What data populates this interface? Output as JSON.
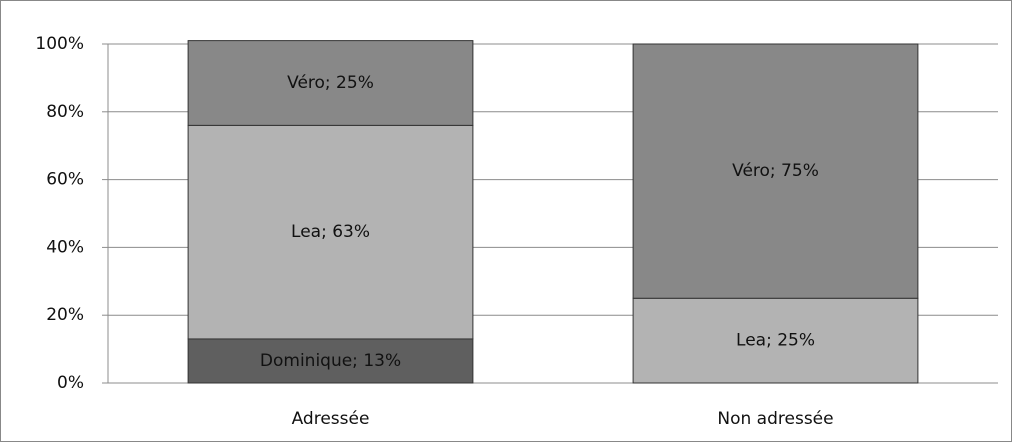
{
  "chart_data": {
    "type": "stacked_bar",
    "categories": [
      "Adressée",
      "Non adressée"
    ],
    "series": [
      {
        "name": "Dominique",
        "color": "#5f5f5f",
        "values": [
          13,
          null
        ],
        "value_labels": [
          "Dominique; 13%",
          null
        ]
      },
      {
        "name": "Lea",
        "color": "#b3b3b3",
        "values": [
          63,
          25
        ],
        "value_labels": [
          "Lea; 63%",
          "Lea; 25%"
        ]
      },
      {
        "name": "Véro",
        "color": "#888888",
        "values": [
          25,
          75
        ],
        "value_labels": [
          "Véro; 25%",
          "Véro; 75%"
        ]
      }
    ],
    "ylim": [
      0,
      100
    ],
    "yticks": [
      {
        "value": 0,
        "label": "0%"
      },
      {
        "value": 20,
        "label": "20%"
      },
      {
        "value": 40,
        "label": "40%"
      },
      {
        "value": 60,
        "label": "60%"
      },
      {
        "value": 80,
        "label": "80%"
      },
      {
        "value": 100,
        "label": "100%"
      }
    ],
    "grid": true
  }
}
